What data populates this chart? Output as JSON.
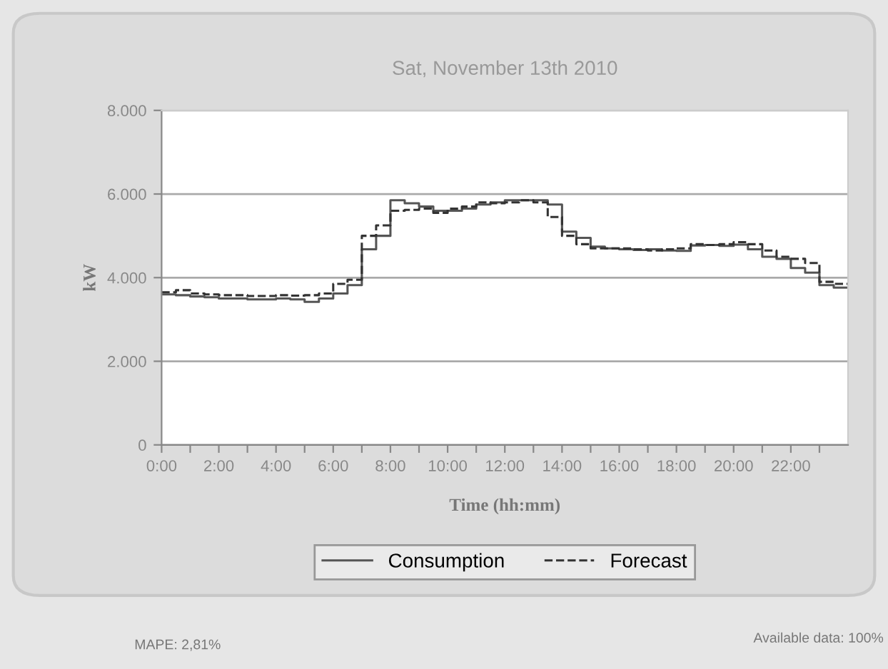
{
  "chart_data": {
    "type": "step",
    "title": "Sat, November 13th 2010",
    "xlabel": "Time (hh:mm)",
    "ylabel": "kW",
    "x": [
      0,
      0.5,
      1,
      1.5,
      2,
      2.5,
      3,
      3.5,
      4,
      4.5,
      5,
      5.5,
      6,
      6.5,
      7,
      7.5,
      8,
      8.5,
      9,
      9.5,
      10,
      10.5,
      11,
      11.5,
      12,
      12.5,
      13,
      13.5,
      14,
      14.5,
      15,
      15.5,
      16,
      16.5,
      17,
      17.5,
      18,
      18.5,
      19,
      19.5,
      20,
      20.5,
      21,
      21.5,
      22,
      22.5,
      23,
      23.5,
      24
    ],
    "series": [
      {
        "name": "Consumption",
        "color": "#555555",
        "line_style": "solid",
        "values": [
          3600,
          3580,
          3550,
          3530,
          3500,
          3500,
          3480,
          3480,
          3500,
          3480,
          3420,
          3500,
          3620,
          3820,
          4680,
          5000,
          5850,
          5780,
          5700,
          5600,
          5600,
          5650,
          5750,
          5800,
          5850,
          5850,
          5850,
          5750,
          5100,
          4950,
          4740,
          4700,
          4680,
          4660,
          4680,
          4650,
          4640,
          4770,
          4780,
          4760,
          4790,
          4680,
          4500,
          4450,
          4230,
          4120,
          3820,
          3760,
          3760
        ]
      },
      {
        "name": "Forecast",
        "color": "#333333",
        "line_style": "dashed",
        "values": [
          3650,
          3700,
          3620,
          3600,
          3580,
          3580,
          3560,
          3560,
          3580,
          3570,
          3580,
          3620,
          3850,
          3950,
          5000,
          5250,
          5600,
          5620,
          5650,
          5550,
          5650,
          5700,
          5800,
          5780,
          5800,
          5850,
          5800,
          5450,
          5000,
          4800,
          4700,
          4700,
          4700,
          4680,
          4650,
          4680,
          4700,
          4800,
          4780,
          4800,
          4850,
          4800,
          4650,
          4500,
          4450,
          4350,
          3900,
          3850,
          3850
        ]
      }
    ],
    "xlim": [
      0,
      24
    ],
    "xticks": [
      {
        "value": 0,
        "label": "0:00"
      },
      {
        "value": 1,
        "label": null
      },
      {
        "value": 2,
        "label": "2:00"
      },
      {
        "value": 3,
        "label": null
      },
      {
        "value": 4,
        "label": "4:00"
      },
      {
        "value": 5,
        "label": null
      },
      {
        "value": 6,
        "label": "6:00"
      },
      {
        "value": 7,
        "label": null
      },
      {
        "value": 8,
        "label": "8:00"
      },
      {
        "value": 9,
        "label": null
      },
      {
        "value": 10,
        "label": "10:00"
      },
      {
        "value": 11,
        "label": null
      },
      {
        "value": 12,
        "label": "12:00"
      },
      {
        "value": 13,
        "label": null
      },
      {
        "value": 14,
        "label": "14:00"
      },
      {
        "value": 15,
        "label": null
      },
      {
        "value": 16,
        "label": "16:00"
      },
      {
        "value": 17,
        "label": null
      },
      {
        "value": 18,
        "label": "18:00"
      },
      {
        "value": 19,
        "label": null
      },
      {
        "value": 20,
        "label": "20:00"
      },
      {
        "value": 21,
        "label": null
      },
      {
        "value": 22,
        "label": "22:00"
      },
      {
        "value": 23,
        "label": null
      }
    ],
    "ylim": [
      0,
      8000
    ],
    "yticks": [
      0,
      {
        "value": 2000,
        "label": "2.000"
      },
      {
        "value": 4000,
        "label": "4.000"
      },
      {
        "value": 6000,
        "label": "6.000"
      },
      {
        "value": 8000,
        "label": "8.000"
      }
    ],
    "grid": "y",
    "legend": "bottom",
    "annotations": [
      "MAPE: 2,81%",
      "Available data: 100%"
    ]
  }
}
